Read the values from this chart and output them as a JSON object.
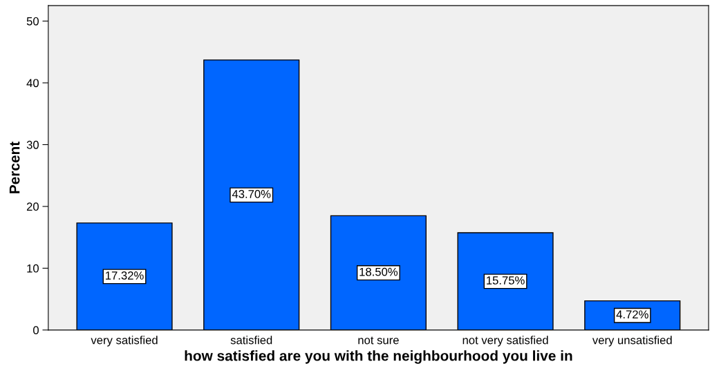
{
  "chart_data": {
    "type": "bar",
    "xlabel": "how satisfied are you with the neighbourhood you live in",
    "ylabel": "Percent",
    "categories": [
      "very satisfied",
      "satisfied",
      "not sure",
      "not very satisfied",
      "very unsatisfied"
    ],
    "values": [
      17.32,
      43.7,
      18.5,
      15.75,
      4.72
    ],
    "value_labels": [
      "17.32%",
      "43.70%",
      "18.50%",
      "15.75%",
      "4.72%"
    ],
    "color": "#0066ff",
    "ylim": [
      0,
      52.5
    ],
    "yticks": [
      0,
      10,
      20,
      30,
      40,
      50
    ],
    "grid": false,
    "legend": false
  }
}
